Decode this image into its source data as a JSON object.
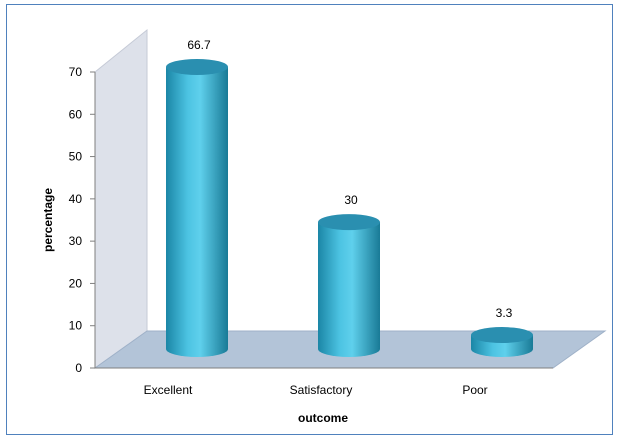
{
  "chart_data": {
    "type": "bar",
    "style": "3d-cylinder",
    "categories": [
      "Excellent",
      "Satisfactory",
      "Poor"
    ],
    "values": [
      66.7,
      30,
      3.3
    ],
    "data_labels": [
      "66.7",
      "30",
      "3.3"
    ],
    "title": "",
    "xlabel": "outcome",
    "ylabel": "percentage",
    "ylim": [
      0,
      70
    ],
    "yticks": [
      "0",
      "10",
      "20",
      "30",
      "40",
      "50",
      "60",
      "70"
    ],
    "grid": false,
    "legend": "none",
    "colors": {
      "bar_body": "#3fb6d8",
      "bar_dark": "#1a7d99",
      "bar_top": "#2a8fb0",
      "wall": "#d9dde6",
      "floor": "#b3c4d8",
      "frame": "#4f81bd"
    }
  }
}
